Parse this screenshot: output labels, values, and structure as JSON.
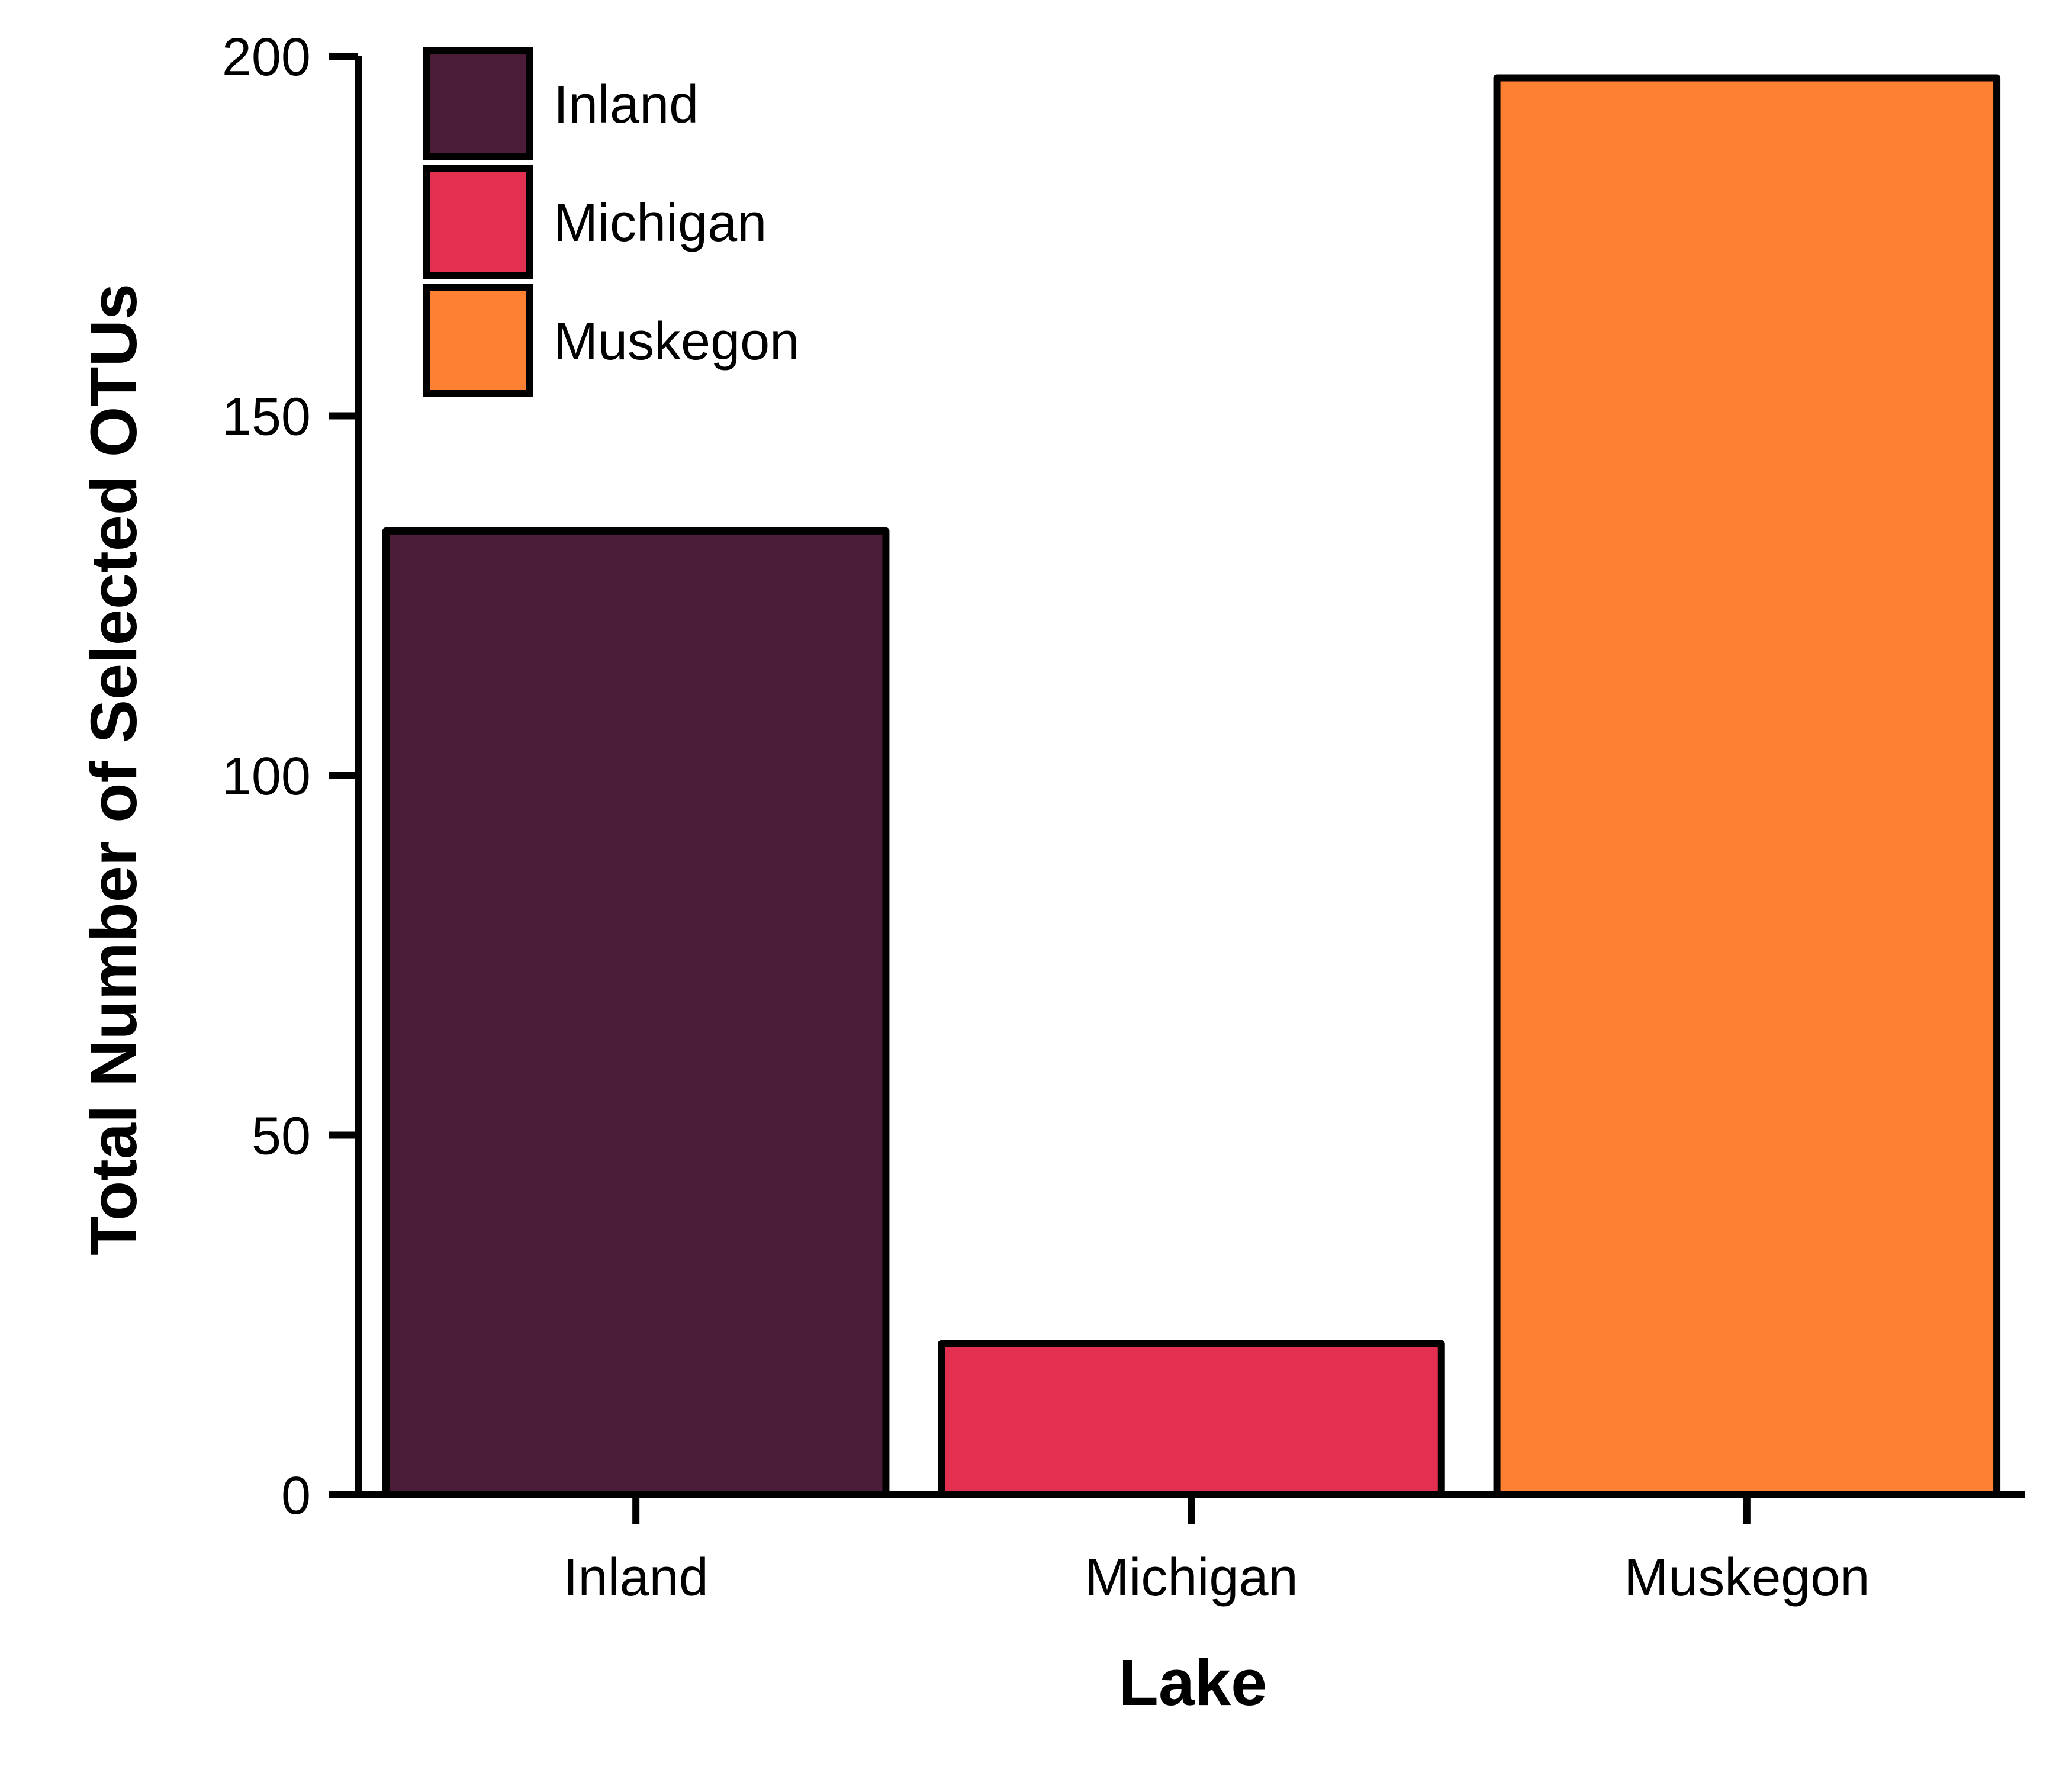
{
  "chart_data": {
    "type": "bar",
    "categories": [
      "Inland",
      "Michigan",
      "Muskegon"
    ],
    "values": [
      134,
      21,
      197
    ],
    "colors": [
      "#4A1C37",
      "#E33050",
      "#FD8033"
    ],
    "xlabel": "Lake",
    "ylabel": "Total Number of Selected OTUs",
    "ylim": [
      0,
      200
    ],
    "yticks": [
      0,
      50,
      100,
      150,
      200
    ],
    "grid": false,
    "legend": {
      "position": "top-left",
      "entries": [
        "Inland",
        "Michigan",
        "Muskegon"
      ]
    }
  }
}
